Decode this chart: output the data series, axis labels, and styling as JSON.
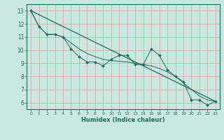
{
  "title": "",
  "xlabel": "Humidex (Indice chaleur)",
  "background_color": "#c8e8e0",
  "plot_bg_color": "#c8e8e0",
  "grid_color": "#d4a0a0",
  "line_color": "#1a6b5a",
  "marker_color": "#1a6b5a",
  "xlim": [
    -0.5,
    23.5
  ],
  "ylim": [
    5.5,
    13.5
  ],
  "xticks": [
    0,
    1,
    2,
    3,
    4,
    5,
    6,
    7,
    8,
    9,
    10,
    11,
    12,
    13,
    14,
    15,
    16,
    17,
    18,
    19,
    20,
    21,
    22,
    23
  ],
  "yticks": [
    6,
    7,
    8,
    9,
    10,
    11,
    12,
    13
  ],
  "series": [
    [
      0,
      13.0
    ],
    [
      1,
      11.8
    ],
    [
      2,
      11.2
    ],
    [
      3,
      11.2
    ],
    [
      4,
      11.0
    ],
    [
      5,
      10.1
    ],
    [
      6,
      9.5
    ],
    [
      7,
      9.1
    ],
    [
      8,
      9.1
    ],
    [
      9,
      8.8
    ],
    [
      10,
      9.3
    ],
    [
      11,
      9.6
    ],
    [
      12,
      9.6
    ],
    [
      13,
      8.9
    ],
    [
      14,
      8.9
    ],
    [
      15,
      10.1
    ],
    [
      16,
      9.6
    ],
    [
      17,
      8.5
    ],
    [
      18,
      8.0
    ],
    [
      19,
      7.6
    ],
    [
      20,
      6.2
    ],
    [
      21,
      6.2
    ],
    [
      22,
      5.8
    ],
    [
      23,
      6.1
    ]
  ],
  "trend_series": [
    [
      0,
      13.0
    ],
    [
      23,
      6.1
    ]
  ],
  "smooth_series": [
    [
      0,
      13.0
    ],
    [
      1,
      11.8
    ],
    [
      2,
      11.2
    ],
    [
      3,
      11.2
    ],
    [
      4,
      11.0
    ],
    [
      5,
      10.55
    ],
    [
      6,
      10.1
    ],
    [
      7,
      9.75
    ],
    [
      8,
      9.5
    ],
    [
      9,
      9.3
    ],
    [
      10,
      9.2
    ],
    [
      11,
      9.15
    ],
    [
      12,
      9.1
    ],
    [
      13,
      9.0
    ],
    [
      14,
      8.9
    ],
    [
      15,
      8.8
    ],
    [
      16,
      8.6
    ],
    [
      17,
      8.35
    ],
    [
      18,
      8.0
    ],
    [
      19,
      7.5
    ],
    [
      20,
      7.0
    ],
    [
      21,
      6.5
    ],
    [
      22,
      6.2
    ],
    [
      23,
      6.1
    ]
  ]
}
